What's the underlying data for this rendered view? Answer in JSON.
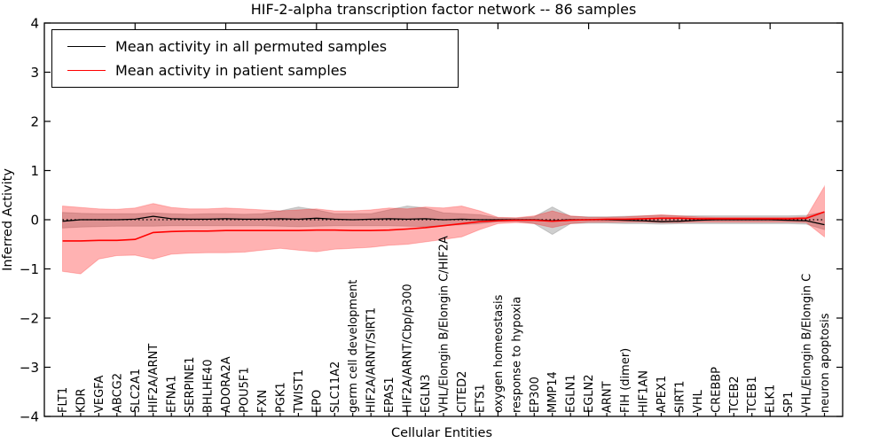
{
  "chart_data": {
    "type": "line",
    "title": "HIF-2-alpha transcription factor network -- 86 samples",
    "xlabel": "Cellular Entities",
    "ylabel": "Inferred Activity",
    "ylim": [
      -4,
      4
    ],
    "yticks": [
      -4,
      -3,
      -2,
      -1,
      0,
      1,
      2,
      3,
      4
    ],
    "grid": false,
    "zero_line": true,
    "legend_position": "upper left",
    "categories": [
      "FLT1",
      "KDR",
      "VEGFA",
      "ABCG2",
      "SLC2A1",
      "HIF2A/ARNT",
      "EFNA1",
      "SERPINE1",
      "BHLHE40",
      "ADORA2A",
      "POU5F1",
      "FXN",
      "PGK1",
      "TWIST1",
      "EPO",
      "SLC11A2",
      "germ cell development",
      "HIF2A/ARNT/SIRT1",
      "EPAS1",
      "HIF2A/ARNT/Cbp/p300",
      "EGLN3",
      "VHL/Elongin B/Elongin C/HIF2A",
      "CITED2",
      "ETS1",
      "oxygen homeostasis",
      "response to hypoxia",
      "EP300",
      "MMP14",
      "EGLN1",
      "EGLN2",
      "ARNT",
      "FIH (dimer)",
      "HIF1AN",
      "APEX1",
      "SIRT1",
      "VHL",
      "CREBBP",
      "TCEB2",
      "TCEB1",
      "ELK1",
      "SP1",
      "VHL/Elongin B/Elongin C",
      "neuron apoptosis"
    ],
    "series": [
      {
        "name": "Mean activity in all permuted samples",
        "color": "#000000",
        "band_color": "#808080",
        "values": [
          -0.03,
          0.0,
          0.0,
          0.0,
          0.01,
          0.07,
          0.02,
          0.01,
          0.01,
          0.02,
          0.01,
          0.01,
          0.02,
          0.01,
          0.03,
          0.01,
          0.0,
          0.01,
          0.02,
          0.01,
          0.02,
          0.0,
          0.01,
          0.0,
          0.0,
          0.0,
          0.0,
          -0.02,
          0.0,
          0.0,
          0.0,
          -0.01,
          -0.02,
          -0.04,
          -0.03,
          -0.01,
          0.0,
          0.0,
          0.0,
          0.0,
          -0.01,
          -0.02,
          -0.1
        ],
        "band_upper": [
          0.15,
          0.13,
          0.12,
          0.12,
          0.12,
          0.14,
          0.12,
          0.11,
          0.12,
          0.12,
          0.11,
          0.12,
          0.18,
          0.26,
          0.2,
          0.12,
          0.12,
          0.12,
          0.2,
          0.28,
          0.24,
          0.14,
          0.12,
          0.1,
          0.04,
          0.03,
          0.06,
          0.26,
          0.07,
          0.06,
          0.06,
          0.07,
          0.08,
          0.09,
          0.08,
          0.08,
          0.08,
          0.08,
          0.08,
          0.08,
          0.08,
          0.09,
          0.16
        ],
        "band_lower": [
          -0.17,
          -0.15,
          -0.14,
          -0.13,
          -0.13,
          -0.13,
          -0.12,
          -0.12,
          -0.12,
          -0.12,
          -0.12,
          -0.12,
          -0.13,
          -0.14,
          -0.13,
          -0.12,
          -0.12,
          -0.12,
          -0.12,
          -0.13,
          -0.14,
          -0.12,
          -0.1,
          -0.08,
          -0.04,
          -0.03,
          -0.08,
          -0.3,
          -0.08,
          -0.07,
          -0.07,
          -0.08,
          -0.08,
          -0.09,
          -0.08,
          -0.08,
          -0.08,
          -0.08,
          -0.08,
          -0.08,
          -0.08,
          -0.09,
          -0.2
        ]
      },
      {
        "name": "Mean activity in patient samples",
        "color": "#ff0000",
        "band_color": "#ff0000",
        "values": [
          -0.43,
          -0.43,
          -0.42,
          -0.42,
          -0.4,
          -0.26,
          -0.24,
          -0.23,
          -0.23,
          -0.22,
          -0.22,
          -0.22,
          -0.22,
          -0.22,
          -0.21,
          -0.21,
          -0.22,
          -0.22,
          -0.21,
          -0.19,
          -0.16,
          -0.12,
          -0.08,
          -0.04,
          -0.02,
          -0.01,
          -0.01,
          -0.03,
          -0.01,
          0.0,
          0.01,
          0.01,
          0.02,
          0.03,
          0.03,
          0.02,
          0.02,
          0.02,
          0.02,
          0.02,
          0.02,
          0.03,
          0.16
        ],
        "band_upper": [
          0.28,
          0.25,
          0.22,
          0.21,
          0.24,
          0.33,
          0.25,
          0.22,
          0.22,
          0.24,
          0.22,
          0.2,
          0.18,
          0.2,
          0.22,
          0.18,
          0.18,
          0.2,
          0.24,
          0.22,
          0.26,
          0.24,
          0.28,
          0.18,
          0.05,
          0.04,
          0.08,
          0.18,
          0.08,
          0.05,
          0.05,
          0.06,
          0.08,
          0.1,
          0.08,
          0.06,
          0.05,
          0.05,
          0.05,
          0.05,
          0.05,
          0.06,
          0.68
        ],
        "band_lower": [
          -1.05,
          -1.1,
          -0.8,
          -0.73,
          -0.72,
          -0.8,
          -0.7,
          -0.68,
          -0.67,
          -0.67,
          -0.66,
          -0.62,
          -0.58,
          -0.62,
          -0.65,
          -0.6,
          -0.58,
          -0.56,
          -0.52,
          -0.5,
          -0.45,
          -0.4,
          -0.35,
          -0.2,
          -0.08,
          -0.06,
          -0.08,
          -0.16,
          -0.08,
          -0.05,
          -0.05,
          -0.05,
          -0.05,
          -0.06,
          -0.06,
          -0.05,
          -0.05,
          -0.05,
          -0.05,
          -0.05,
          -0.05,
          -0.06,
          -0.35
        ]
      }
    ]
  }
}
